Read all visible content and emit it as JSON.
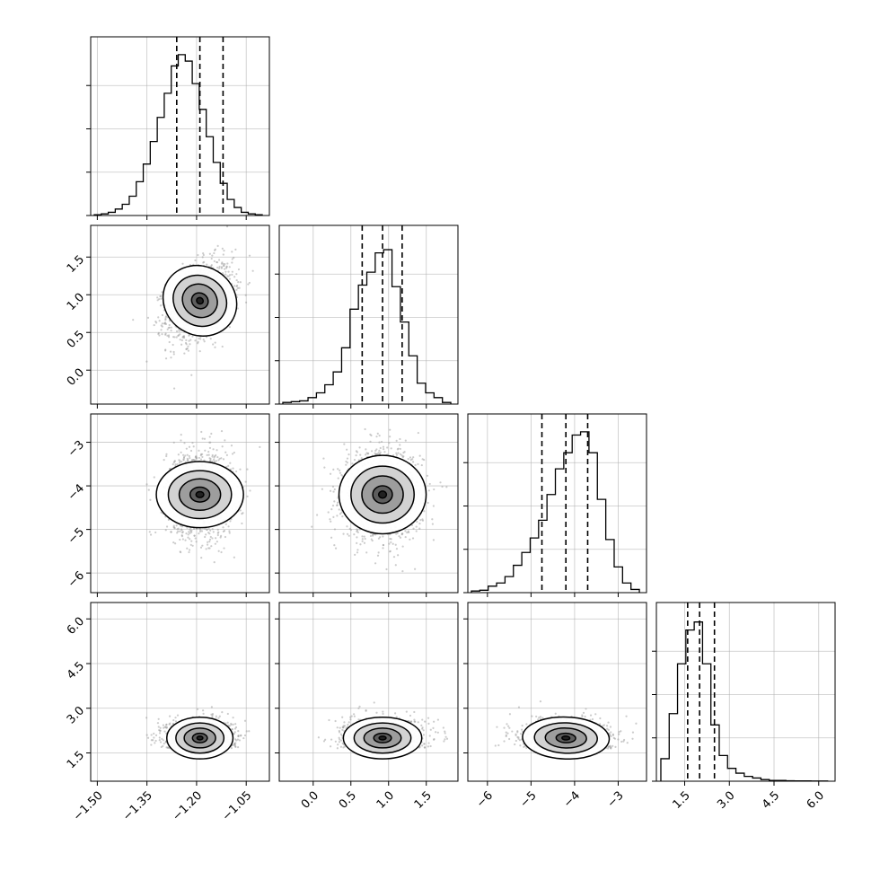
{
  "chart_data": {
    "type": "corner",
    "grid": true,
    "parameters": [
      {
        "range": [
          -1.52,
          -0.98
        ],
        "ticks": [
          -1.5,
          -1.35,
          -1.2,
          -1.05
        ],
        "tick_labels": [
          "−1.50",
          "−1.35",
          "−1.20",
          "−1.05"
        ],
        "quantiles": [
          -1.26,
          -1.19,
          -1.12
        ],
        "center": -1.19,
        "sigma": 0.05
      },
      {
        "range": [
          -0.45,
          1.92
        ],
        "ticks": [
          0.0,
          0.5,
          1.0,
          1.5
        ],
        "tick_labels": [
          "0.0",
          "0.5",
          "1.0",
          "1.5"
        ],
        "quantiles": [
          0.65,
          0.92,
          1.18
        ],
        "center": 0.92,
        "sigma": 0.26
      },
      {
        "range": [
          -6.45,
          -2.35
        ],
        "ticks": [
          -6,
          -5,
          -4,
          -3
        ],
        "tick_labels": [
          "−6",
          "−5",
          "−4",
          "−3"
        ],
        "quantiles": [
          -4.75,
          -4.2,
          -3.7
        ],
        "center": -4.2,
        "sigma": 0.5
      },
      {
        "range": [
          0.55,
          6.55
        ],
        "ticks": [
          1.5,
          3.0,
          4.5,
          6.0
        ],
        "tick_labels": [
          "1.5",
          "3.0",
          "4.5",
          "6.0"
        ],
        "quantiles": [
          1.6,
          2.0,
          2.5
        ],
        "center": 2.0,
        "sigma": 0.35
      }
    ],
    "histograms": [
      [
        0.005,
        0.01,
        0.02,
        0.04,
        0.07,
        0.12,
        0.21,
        0.32,
        0.46,
        0.61,
        0.76,
        0.93,
        1.0,
        0.96,
        0.82,
        0.66,
        0.49,
        0.33,
        0.2,
        0.1,
        0.05,
        0.02,
        0.01,
        0.005
      ],
      [
        0.01,
        0.015,
        0.02,
        0.04,
        0.07,
        0.12,
        0.2,
        0.35,
        0.59,
        0.74,
        0.82,
        0.94,
        0.96,
        0.73,
        0.51,
        0.3,
        0.13,
        0.07,
        0.04,
        0.01
      ],
      [
        0.01,
        0.015,
        0.04,
        0.06,
        0.1,
        0.17,
        0.25,
        0.34,
        0.45,
        0.61,
        0.77,
        0.87,
        0.98,
        1.0,
        0.87,
        0.58,
        0.33,
        0.16,
        0.06,
        0.02
      ],
      [
        0.14,
        0.42,
        0.73,
        0.94,
        0.99,
        0.73,
        0.35,
        0.16,
        0.08,
        0.05,
        0.03,
        0.02,
        0.01,
        0.005,
        0.005,
        0.003,
        0.002,
        0.002,
        0.001,
        0.001
      ]
    ],
    "correlations": {
      "1-0": 0.35,
      "2-0": 0.0,
      "2-1": 0.0,
      "3-0": 0.0,
      "3-1": 0.0,
      "3-2": -0.05
    }
  }
}
